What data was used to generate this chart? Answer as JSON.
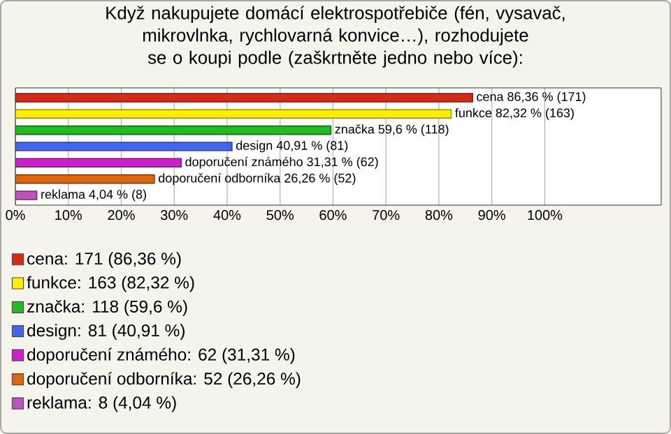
{
  "chart_data": {
    "type": "bar",
    "orientation": "horizontal",
    "title": "Když nakupujete domácí elektrospotřebiče (fén, vysavač, mikrovlnka, rychlovarná konvice…), rozhodujete se o koupi podle (zaškrtněte jedno nebo více):",
    "categories": [
      null,
      null,
      null,
      null,
      null,
      null,
      null
    ],
    "series": [
      {
        "name": "cena: 171 (86,36 %)",
        "color": "#d42a16",
        "values": [
          86.36,
          null,
          null,
          null,
          null,
          null,
          null
        ],
        "value_labels": [
          "cena 86,36 % (171)",
          null,
          null,
          null,
          null,
          null,
          null
        ]
      },
      {
        "name": "funkce: 163 (82,32 %)",
        "color": "#ffee00",
        "values": [
          null,
          82.32,
          null,
          null,
          null,
          null,
          null
        ],
        "value_labels": [
          null,
          "funkce 82,32 % (163)",
          null,
          null,
          null,
          null,
          null
        ]
      },
      {
        "name": "značka: 118 (59,6 %)",
        "color": "#22bb22",
        "values": [
          null,
          null,
          59.6,
          null,
          null,
          null,
          null
        ],
        "value_labels": [
          null,
          null,
          "značka 59,6 % (118)",
          null,
          null,
          null,
          null
        ]
      },
      {
        "name": "design: 81 (40,91 %)",
        "color": "#4466ee",
        "values": [
          null,
          null,
          null,
          40.91,
          null,
          null,
          null
        ],
        "value_labels": [
          null,
          null,
          null,
          "design 40,91 % (81)",
          null,
          null,
          null
        ]
      },
      {
        "name": "doporučení známého: 62 (31,31 %)",
        "color": "#cc22cc",
        "values": [
          null,
          null,
          null,
          null,
          31.31,
          null,
          null
        ],
        "value_labels": [
          null,
          null,
          null,
          null,
          "doporučení známého 31,31 % (62)",
          null,
          null
        ]
      },
      {
        "name": "doporučení odborníka: 52 (26,26 %)",
        "color": "#dd6611",
        "values": [
          null,
          null,
          null,
          null,
          null,
          26.26,
          null
        ],
        "value_labels": [
          null,
          null,
          null,
          null,
          null,
          "doporučení odborníka 26,26 % (52)",
          null
        ]
      },
      {
        "name": "reklama: 8 (4,04 %)",
        "color": "#bb55bb",
        "values": [
          null,
          null,
          null,
          null,
          null,
          null,
          4.04
        ],
        "value_labels": [
          null,
          null,
          null,
          null,
          null,
          null,
          "reklama 4,04 % (8)"
        ]
      }
    ],
    "xlim": [
      0,
      122
    ],
    "xticks": [
      {
        "value": 0,
        "label": "0%"
      },
      {
        "value": 10,
        "label": "10%"
      },
      {
        "value": 20,
        "label": "20%"
      },
      {
        "value": 30,
        "label": "30%"
      },
      {
        "value": 40,
        "label": "40%"
      },
      {
        "value": 50,
        "label": "50%"
      },
      {
        "value": 60,
        "label": "60%"
      },
      {
        "value": 70,
        "label": "70%"
      },
      {
        "value": 80,
        "label": "80%"
      },
      {
        "value": 90,
        "label": "90%"
      },
      {
        "value": 100,
        "label": "100%"
      }
    ],
    "grid": "x",
    "legend": "bottom left",
    "tick_labels": "x"
  }
}
